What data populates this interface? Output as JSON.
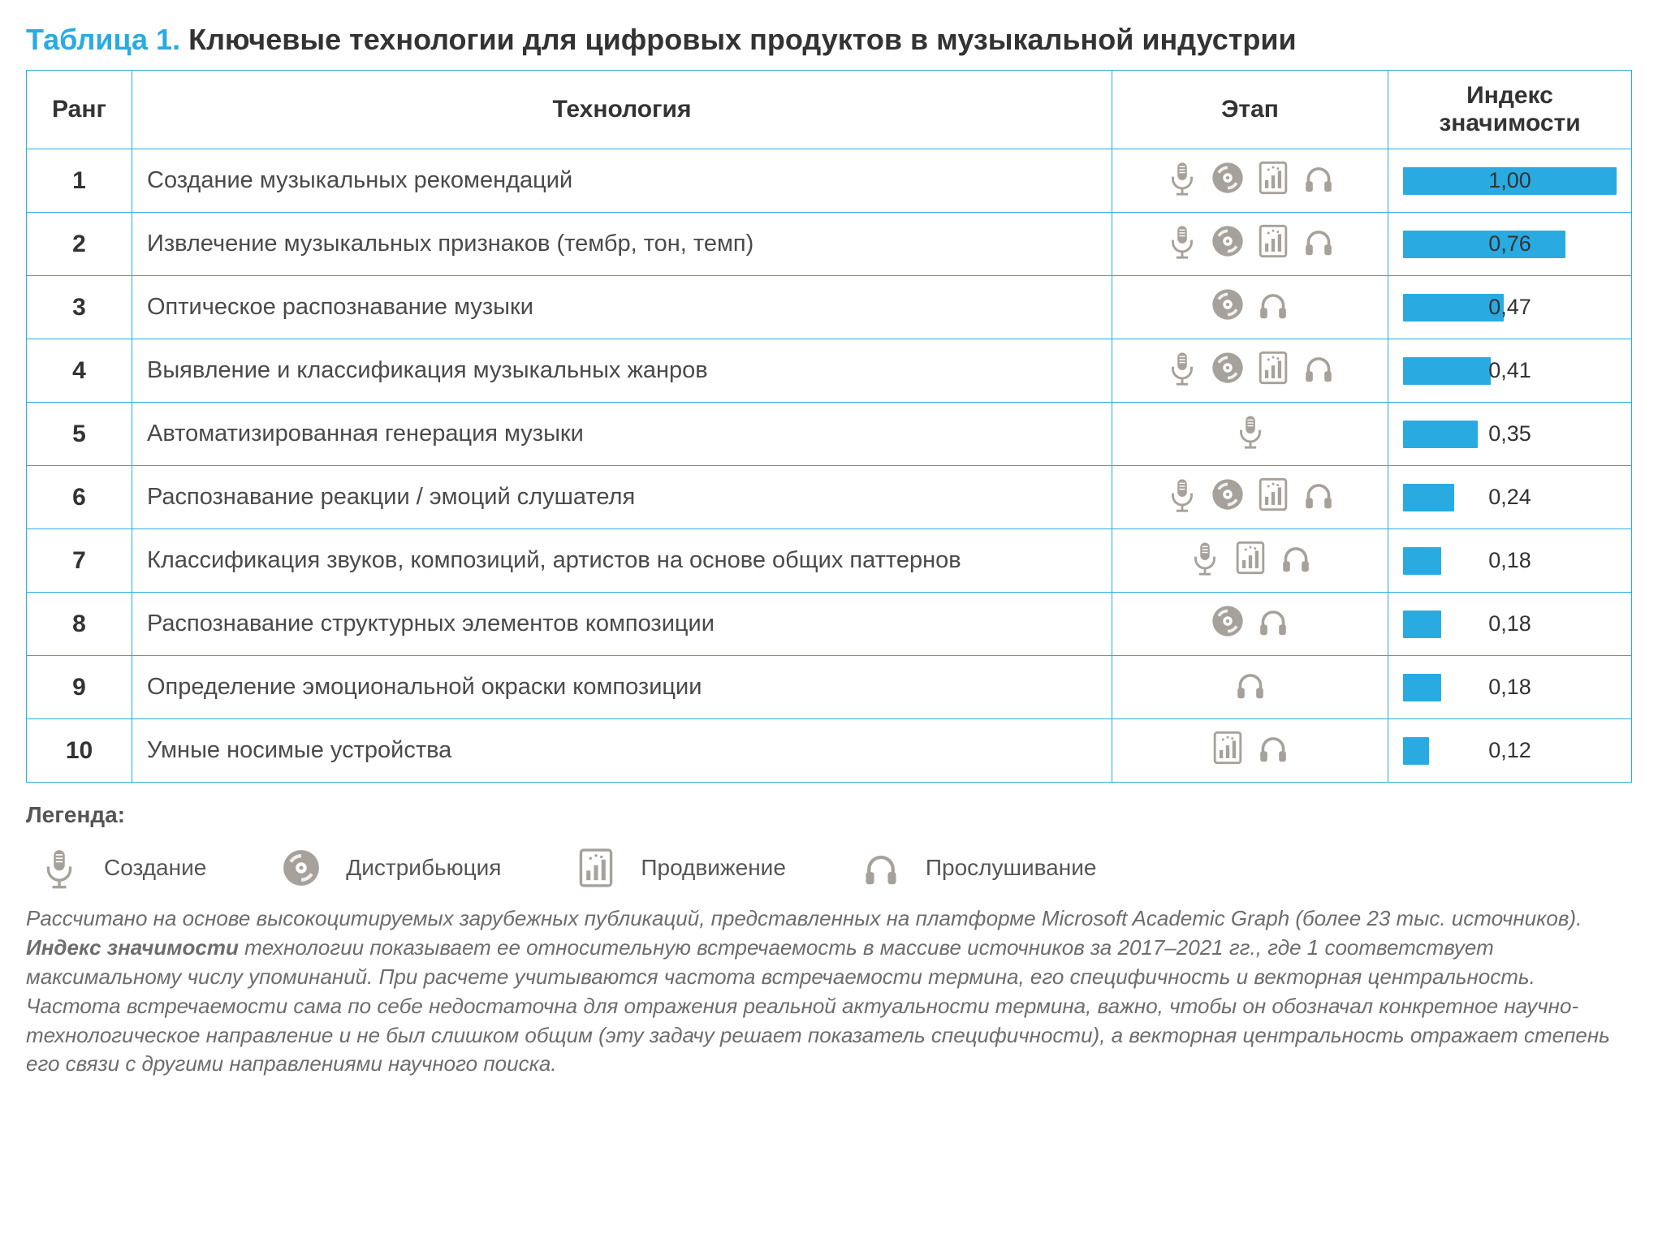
{
  "title": {
    "label": "Таблица 1.",
    "text": "Ключевые технологии для цифровых продуктов в музыкальной индустрии"
  },
  "columns": {
    "rank": "Ранг",
    "technology": "Технология",
    "stage": "Этап",
    "index": "Индекс значимости"
  },
  "max_index": 1.0,
  "bar_color": "#29abe2",
  "border_color": "#29abe2",
  "icon_color": "#a6a19a",
  "rows": [
    {
      "rank": "1",
      "technology": "Создание музыкальных рекомендаций",
      "stages": [
        "mic",
        "disc",
        "chart",
        "headphones"
      ],
      "index": 1.0,
      "index_label": "1,00"
    },
    {
      "rank": "2",
      "technology": "Извлечение музыкальных признаков (тембр, тон, темп)",
      "stages": [
        "mic",
        "disc",
        "chart",
        "headphones"
      ],
      "index": 0.76,
      "index_label": "0,76"
    },
    {
      "rank": "3",
      "technology": "Оптическое распознавание музыки",
      "stages": [
        "disc",
        "headphones"
      ],
      "index": 0.47,
      "index_label": "0,47"
    },
    {
      "rank": "4",
      "technology": "Выявление и классификация музыкальных жанров",
      "stages": [
        "mic",
        "disc",
        "chart",
        "headphones"
      ],
      "index": 0.41,
      "index_label": "0,41"
    },
    {
      "rank": "5",
      "technology": "Автоматизированная генерация музыки",
      "stages": [
        "mic"
      ],
      "index": 0.35,
      "index_label": "0,35"
    },
    {
      "rank": "6",
      "technology": "Распознавание реакции / эмоций слушателя",
      "stages": [
        "mic",
        "disc",
        "chart",
        "headphones"
      ],
      "index": 0.24,
      "index_label": "0,24"
    },
    {
      "rank": "7",
      "technology": "Классификация звуков, композиций, артистов на основе общих паттернов",
      "stages": [
        "mic",
        "chart",
        "headphones"
      ],
      "index": 0.18,
      "index_label": "0,18"
    },
    {
      "rank": "8",
      "technology": "Распознавание структурных элементов композиции",
      "stages": [
        "disc",
        "headphones"
      ],
      "index": 0.18,
      "index_label": "0,18"
    },
    {
      "rank": "9",
      "technology": "Определение эмоциональной окраски композиции",
      "stages": [
        "headphones"
      ],
      "index": 0.18,
      "index_label": "0,18"
    },
    {
      "rank": "10",
      "technology": "Умные носимые устройства",
      "stages": [
        "chart",
        "headphones"
      ],
      "index": 0.12,
      "index_label": "0,12"
    }
  ],
  "legend": {
    "title": "Легенда:",
    "items": [
      {
        "icon": "mic",
        "label": "Создание"
      },
      {
        "icon": "disc",
        "label": "Дистрибьюция"
      },
      {
        "icon": "chart",
        "label": "Продвижение"
      },
      {
        "icon": "headphones",
        "label": "Прослушивание"
      }
    ]
  },
  "footnote": {
    "line1": "Рассчитано на основе высокоцитируемых зарубежных публикаций, представленных на платформе Microsoft Academic Graph (более 23 тыс. источников).",
    "bold": "Индекс значимости",
    "rest": " технологии показывает ее относительную встречаемость в массиве источников за 2017–2021 гг., где 1 соответствует максимальному числу упоминаний. При расчете учитываются частота встречаемости термина, его специфичность и векторная центральность. Частота встречаемости сама по себе недостаточна для отражения реальной актуальности термина, важно, чтобы он обозначал конкретное научно-технологическое направление и не был слишком общим (эту задачу решает показатель специфичности), а векторная центральность отражает степень его связи с другими направлениями научного поиска."
  }
}
